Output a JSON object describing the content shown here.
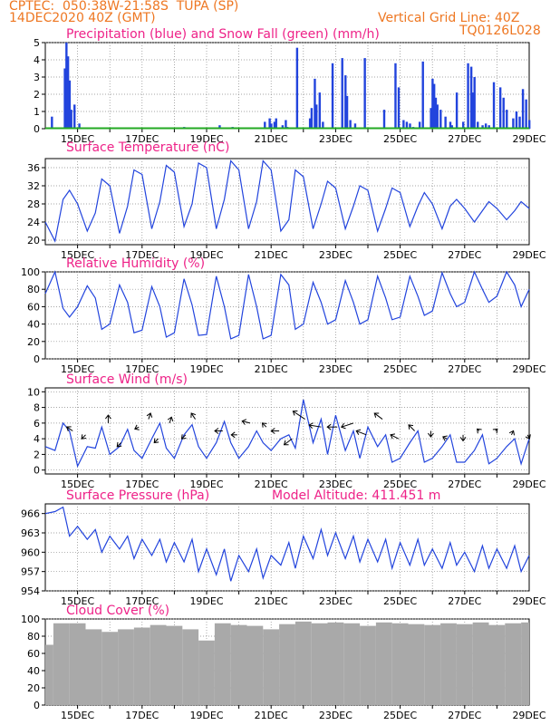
{
  "header": {
    "source": "CPTEC:",
    "location": "050:38W-21:58S",
    "city": "TUPA (SP)",
    "init_time": "14DEC2020 40Z (GMT)",
    "grid_note": "Vertical Grid Line: 40Z",
    "run_id": "TQ0126L028"
  },
  "colors": {
    "header": "#ee7722",
    "panel_title": "#ee2288",
    "line": "#2244dd",
    "precip": "#2244dd",
    "snow": "#22aa22",
    "cloud": "#a9a9a9",
    "grid": "#888888"
  },
  "x_axis": {
    "start_day": 14.0,
    "end_day": 29.0,
    "date_labels": [
      "15DEC",
      "17DEC",
      "19DEC",
      "21DEC",
      "23DEC",
      "25DEC",
      "27DEC",
      "29DEC"
    ]
  },
  "chart_data": [
    {
      "type": "bar",
      "title": "Precipitation (blue) and Snow Fall (green) (mm/h)",
      "ylim": [
        0,
        5
      ],
      "yticks": [
        "0",
        "1",
        "2",
        "3",
        "4",
        "5"
      ],
      "x_unit": "day of Dec 2020",
      "series": [
        {
          "x": [
            14.2,
            14.6,
            14.65,
            14.7,
            14.75,
            14.8,
            14.9,
            15.05,
            15.7,
            16.2,
            17.1,
            18.3,
            19.4,
            19.8,
            20.8,
            20.95,
            21.0,
            21.1,
            21.15,
            21.35,
            21.45,
            21.5,
            21.8,
            22.2,
            22.25,
            22.35,
            22.4,
            22.5,
            22.6,
            22.9,
            23.2,
            23.3,
            23.35,
            23.45,
            23.6,
            23.9,
            24.5,
            24.85,
            24.95,
            25.1,
            25.2,
            25.3,
            25.4,
            25.6,
            25.7,
            25.95,
            26.0,
            26.05,
            26.1,
            26.15,
            26.25,
            26.4,
            26.55,
            26.6,
            26.75,
            26.95,
            27.1,
            27.2,
            27.25,
            27.3,
            27.4,
            27.55,
            27.65,
            27.75,
            27.9,
            28.1,
            28.2,
            28.3,
            28.5,
            28.6,
            28.7,
            28.8,
            28.9,
            29.0
          ],
          "y": [
            0.7,
            3.5,
            5.0,
            4.2,
            2.8,
            1.1,
            1.4,
            0.3,
            0.05,
            0.05,
            0.05,
            0.1,
            0.2,
            0.1,
            0.4,
            0.6,
            0.3,
            0.4,
            0.6,
            0.2,
            0.5,
            0.1,
            4.7,
            0.6,
            1.2,
            2.9,
            1.4,
            2.1,
            0.4,
            3.8,
            4.1,
            3.1,
            1.9,
            0.5,
            0.3,
            4.1,
            1.1,
            3.8,
            2.4,
            0.5,
            0.4,
            0.3,
            0.1,
            0.4,
            3.9,
            1.2,
            2.9,
            2.6,
            1.8,
            1.4,
            1.1,
            0.7,
            0.4,
            0.2,
            2.1,
            0.4,
            3.8,
            3.6,
            2.1,
            3.0,
            0.4,
            0.2,
            0.3,
            0.2,
            2.7,
            2.4,
            1.8,
            1.1,
            0.6,
            1.0,
            0.7,
            2.3,
            1.7,
            0.5
          ]
        },
        {
          "name": "Snow Fall",
          "x": [
            14.0,
            29.0
          ],
          "y": [
            0,
            0
          ]
        }
      ]
    },
    {
      "type": "line",
      "title": "Surface Temperature (nC)",
      "ylim": [
        19,
        38
      ],
      "yticks": [
        "20",
        "24",
        "28",
        "32",
        "36"
      ],
      "x": [
        14.0,
        14.3,
        14.55,
        14.75,
        15.0,
        15.3,
        15.55,
        15.75,
        16.0,
        16.3,
        16.55,
        16.75,
        17.0,
        17.3,
        17.55,
        17.75,
        18.0,
        18.3,
        18.55,
        18.75,
        19.0,
        19.3,
        19.55,
        19.75,
        20.0,
        20.3,
        20.55,
        20.75,
        21.0,
        21.3,
        21.55,
        21.75,
        22.0,
        22.3,
        22.55,
        22.75,
        23.0,
        23.3,
        23.55,
        23.75,
        24.0,
        24.3,
        24.55,
        24.75,
        25.0,
        25.3,
        25.55,
        25.75,
        26.0,
        26.3,
        26.55,
        26.75,
        27.0,
        27.3,
        27.55,
        27.75,
        28.0,
        28.3,
        28.55,
        28.75,
        29.0
      ],
      "y": [
        24.0,
        19.8,
        29.0,
        31.0,
        28.0,
        22.0,
        26.0,
        33.5,
        32.0,
        21.5,
        27.5,
        35.5,
        34.5,
        22.5,
        28.5,
        36.5,
        35.0,
        23.0,
        28.0,
        37.0,
        36.0,
        22.5,
        29.0,
        37.5,
        35.5,
        22.5,
        28.5,
        37.5,
        35.5,
        22.0,
        24.5,
        35.5,
        34.0,
        22.5,
        28.0,
        33.0,
        31.5,
        22.5,
        27.5,
        32.0,
        31.0,
        22.0,
        27.0,
        31.5,
        30.5,
        23.0,
        27.5,
        30.5,
        28.0,
        22.5,
        27.5,
        29.0,
        27.0,
        24.0,
        26.5,
        28.5,
        27.0,
        24.5,
        26.5,
        28.5,
        27.0
      ]
    },
    {
      "type": "line",
      "title": "Relative Humidity (%)",
      "ylim": [
        0,
        100
      ],
      "yticks": [
        "0",
        "20",
        "40",
        "60",
        "80",
        "100"
      ],
      "x": [
        14.0,
        14.3,
        14.55,
        14.75,
        15.0,
        15.3,
        15.55,
        15.75,
        16.0,
        16.3,
        16.55,
        16.75,
        17.0,
        17.3,
        17.55,
        17.75,
        18.0,
        18.3,
        18.55,
        18.75,
        19.0,
        19.3,
        19.55,
        19.75,
        20.0,
        20.3,
        20.55,
        20.75,
        21.0,
        21.3,
        21.55,
        21.75,
        22.0,
        22.3,
        22.55,
        22.75,
        23.0,
        23.3,
        23.55,
        23.75,
        24.0,
        24.3,
        24.55,
        24.75,
        25.0,
        25.3,
        25.55,
        25.75,
        26.0,
        26.3,
        26.55,
        26.75,
        27.0,
        27.3,
        27.55,
        27.75,
        28.0,
        28.3,
        28.55,
        28.75,
        29.0
      ],
      "y": [
        75,
        100,
        58,
        48,
        60,
        84,
        70,
        34,
        40,
        85,
        65,
        30,
        33,
        83,
        60,
        25,
        30,
        92,
        62,
        27,
        28,
        95,
        60,
        23,
        27,
        97,
        60,
        23,
        27,
        97,
        85,
        34,
        40,
        88,
        65,
        40,
        45,
        90,
        65,
        40,
        45,
        95,
        70,
        45,
        48,
        95,
        72,
        50,
        55,
        99,
        75,
        60,
        65,
        100,
        80,
        65,
        72,
        100,
        85,
        60,
        80
      ]
    },
    {
      "type": "line",
      "title": "Surface Wind (m/s)",
      "ylim": [
        -0.5,
        10.5
      ],
      "yticks": [
        "0",
        "2",
        "4",
        "6",
        "8",
        "10"
      ],
      "x": [
        14.0,
        14.3,
        14.55,
        14.75,
        15.0,
        15.3,
        15.55,
        15.75,
        16.0,
        16.3,
        16.55,
        16.75,
        17.0,
        17.3,
        17.55,
        17.75,
        18.0,
        18.3,
        18.55,
        18.75,
        19.0,
        19.3,
        19.55,
        19.75,
        20.0,
        20.3,
        20.55,
        20.75,
        21.0,
        21.3,
        21.55,
        21.75,
        22.0,
        22.3,
        22.55,
        22.75,
        23.0,
        23.3,
        23.55,
        23.75,
        24.0,
        24.3,
        24.55,
        24.75,
        25.0,
        25.3,
        25.55,
        25.75,
        26.0,
        26.3,
        26.55,
        26.75,
        27.0,
        27.3,
        27.55,
        27.75,
        28.0,
        28.3,
        28.55,
        28.75,
        29.0
      ],
      "y": [
        3.0,
        2.5,
        6.0,
        5.0,
        0.5,
        3.0,
        2.8,
        5.5,
        2.0,
        3.0,
        5.2,
        2.5,
        1.5,
        4.0,
        6.0,
        2.8,
        1.5,
        4.5,
        5.8,
        3.0,
        1.5,
        3.5,
        6.2,
        3.5,
        1.5,
        3.0,
        5.0,
        3.5,
        2.5,
        4.0,
        4.5,
        2.8,
        9.0,
        3.5,
        6.5,
        2.0,
        7.0,
        2.5,
        5.0,
        1.5,
        5.5,
        3.0,
        4.5,
        1.0,
        1.5,
        3.5,
        5.0,
        1.0,
        1.5,
        3.0,
        4.5,
        1.0,
        1.0,
        2.5,
        4.5,
        0.8,
        1.5,
        3.0,
        4.0,
        0.8,
        4.0
      ],
      "arrows": {
        "x": [
          14.85,
          15.25,
          15.95,
          16.35,
          16.9,
          17.2,
          17.5,
          17.85,
          18.35,
          18.65,
          19.5,
          19.95,
          20.35,
          20.85,
          21.25,
          21.65,
          22.05,
          22.55,
          23.05,
          23.55,
          23.95,
          24.45,
          24.95,
          25.45,
          25.95,
          26.45,
          26.95,
          27.45,
          27.95,
          28.45,
          28.95
        ],
        "y": [
          5.0,
          4.5,
          6.0,
          3.5,
          5.5,
          6.5,
          4.0,
          6.0,
          4.5,
          6.5,
          5.0,
          4.5,
          6.0,
          5.5,
          5.0,
          4.0,
          6.5,
          5.5,
          5.5,
          6.0,
          4.5,
          6.5,
          4.0,
          5.0,
          5.0,
          4.0,
          4.5,
          5.0,
          5.0,
          4.5,
          4.5
        ],
        "u": [
          -3,
          -2,
          0,
          -2,
          -2,
          1,
          -2,
          1,
          -2,
          -2,
          -4,
          -3,
          -4,
          -2,
          -4,
          -4,
          -6,
          -6,
          -5,
          -6,
          -5,
          -4,
          -4,
          -3,
          0,
          -2,
          0,
          -1,
          1,
          1,
          1
        ],
        "v": [
          2,
          -2,
          4,
          -2,
          -1,
          3,
          -2,
          3,
          -2,
          3,
          0,
          0,
          1,
          2,
          0,
          -3,
          4,
          1,
          0,
          -2,
          2,
          3,
          2,
          3,
          -3,
          1,
          -3,
          1,
          1,
          2,
          -2
        ]
      }
    },
    {
      "type": "line",
      "title": "Surface Pressure (hPa)",
      "subtitle": "Model Altitude: 411.451 m",
      "ylim": [
        954,
        967.5
      ],
      "yticks": [
        "954",
        "957",
        "960",
        "963",
        "966"
      ],
      "x": [
        14.0,
        14.3,
        14.55,
        14.75,
        15.0,
        15.3,
        15.55,
        15.75,
        16.0,
        16.3,
        16.55,
        16.75,
        17.0,
        17.3,
        17.55,
        17.75,
        18.0,
        18.3,
        18.55,
        18.75,
        19.0,
        19.3,
        19.55,
        19.75,
        20.0,
        20.3,
        20.55,
        20.75,
        21.0,
        21.3,
        21.55,
        21.75,
        22.0,
        22.3,
        22.55,
        22.75,
        23.0,
        23.3,
        23.55,
        23.75,
        24.0,
        24.3,
        24.55,
        24.75,
        25.0,
        25.3,
        25.55,
        25.75,
        26.0,
        26.3,
        26.55,
        26.75,
        27.0,
        27.3,
        27.55,
        27.75,
        28.0,
        28.3,
        28.55,
        28.75,
        29.0
      ],
      "y": [
        966.0,
        966.3,
        967.0,
        962.5,
        964.0,
        962.0,
        963.5,
        960.0,
        962.5,
        960.5,
        962.5,
        959.0,
        962.0,
        959.5,
        962.0,
        958.5,
        961.5,
        958.5,
        962.0,
        957.0,
        960.5,
        956.5,
        960.5,
        955.5,
        959.5,
        957.0,
        960.5,
        956.0,
        959.5,
        958.0,
        961.5,
        957.5,
        962.5,
        959.0,
        963.5,
        959.5,
        963.0,
        959.0,
        962.5,
        958.5,
        962.0,
        958.5,
        962.0,
        957.5,
        961.5,
        958.0,
        962.0,
        958.0,
        960.5,
        957.5,
        961.5,
        958.0,
        960.0,
        957.0,
        961.0,
        957.5,
        960.5,
        957.5,
        961.0,
        957.0,
        959.5
      ]
    },
    {
      "type": "bar",
      "title": "Cloud Cover (%)",
      "ylim": [
        0,
        100
      ],
      "yticks": [
        "0",
        "20",
        "40",
        "60",
        "80",
        "100"
      ],
      "x": [
        14.0,
        14.5,
        15.0,
        15.5,
        16.0,
        16.5,
        17.0,
        17.5,
        18.0,
        18.5,
        19.0,
        19.5,
        20.0,
        20.5,
        21.0,
        21.5,
        22.0,
        22.5,
        23.0,
        23.5,
        24.0,
        24.5,
        25.0,
        25.5,
        26.0,
        26.5,
        27.0,
        27.5,
        28.0,
        28.5,
        29.0
      ],
      "values": [
        70,
        95,
        95,
        88,
        85,
        88,
        90,
        93,
        92,
        88,
        75,
        95,
        93,
        92,
        88,
        94,
        97,
        95,
        96,
        95,
        92,
        96,
        95,
        94,
        93,
        95,
        94,
        96,
        93,
        95,
        96
      ]
    }
  ]
}
